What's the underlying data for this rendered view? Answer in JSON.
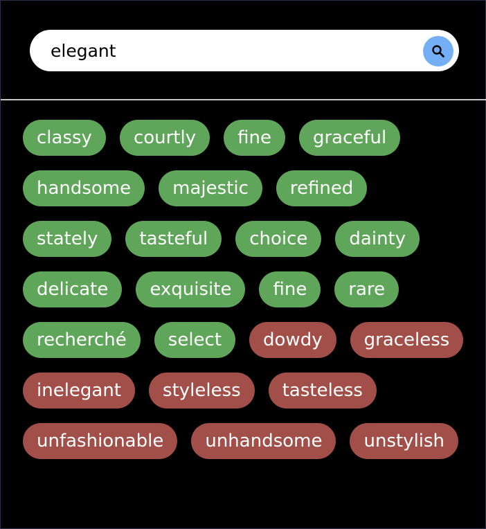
{
  "search": {
    "value": "elegant",
    "button_icon": "search-icon"
  },
  "colors": {
    "synonym": "#5fa55a",
    "antonym": "#a24f4a",
    "search_button": "#74aef5"
  },
  "words": [
    {
      "text": "classy",
      "type": "synonym"
    },
    {
      "text": "courtly",
      "type": "synonym"
    },
    {
      "text": "fine",
      "type": "synonym"
    },
    {
      "text": "graceful",
      "type": "synonym"
    },
    {
      "text": "handsome",
      "type": "synonym"
    },
    {
      "text": "majestic",
      "type": "synonym"
    },
    {
      "text": "refined",
      "type": "synonym"
    },
    {
      "text": "stately",
      "type": "synonym"
    },
    {
      "text": "tasteful",
      "type": "synonym"
    },
    {
      "text": "choice",
      "type": "synonym"
    },
    {
      "text": "dainty",
      "type": "synonym"
    },
    {
      "text": "delicate",
      "type": "synonym"
    },
    {
      "text": "exquisite",
      "type": "synonym"
    },
    {
      "text": "fine",
      "type": "synonym"
    },
    {
      "text": "rare",
      "type": "synonym"
    },
    {
      "text": "recherché",
      "type": "synonym"
    },
    {
      "text": "select",
      "type": "synonym"
    },
    {
      "text": "dowdy",
      "type": "antonym"
    },
    {
      "text": "graceless",
      "type": "antonym"
    },
    {
      "text": "inelegant",
      "type": "antonym"
    },
    {
      "text": "styleless",
      "type": "antonym"
    },
    {
      "text": "tasteless",
      "type": "antonym"
    },
    {
      "text": "unfashionable",
      "type": "antonym"
    },
    {
      "text": "unhandsome",
      "type": "antonym"
    },
    {
      "text": "unstylish",
      "type": "antonym"
    }
  ]
}
